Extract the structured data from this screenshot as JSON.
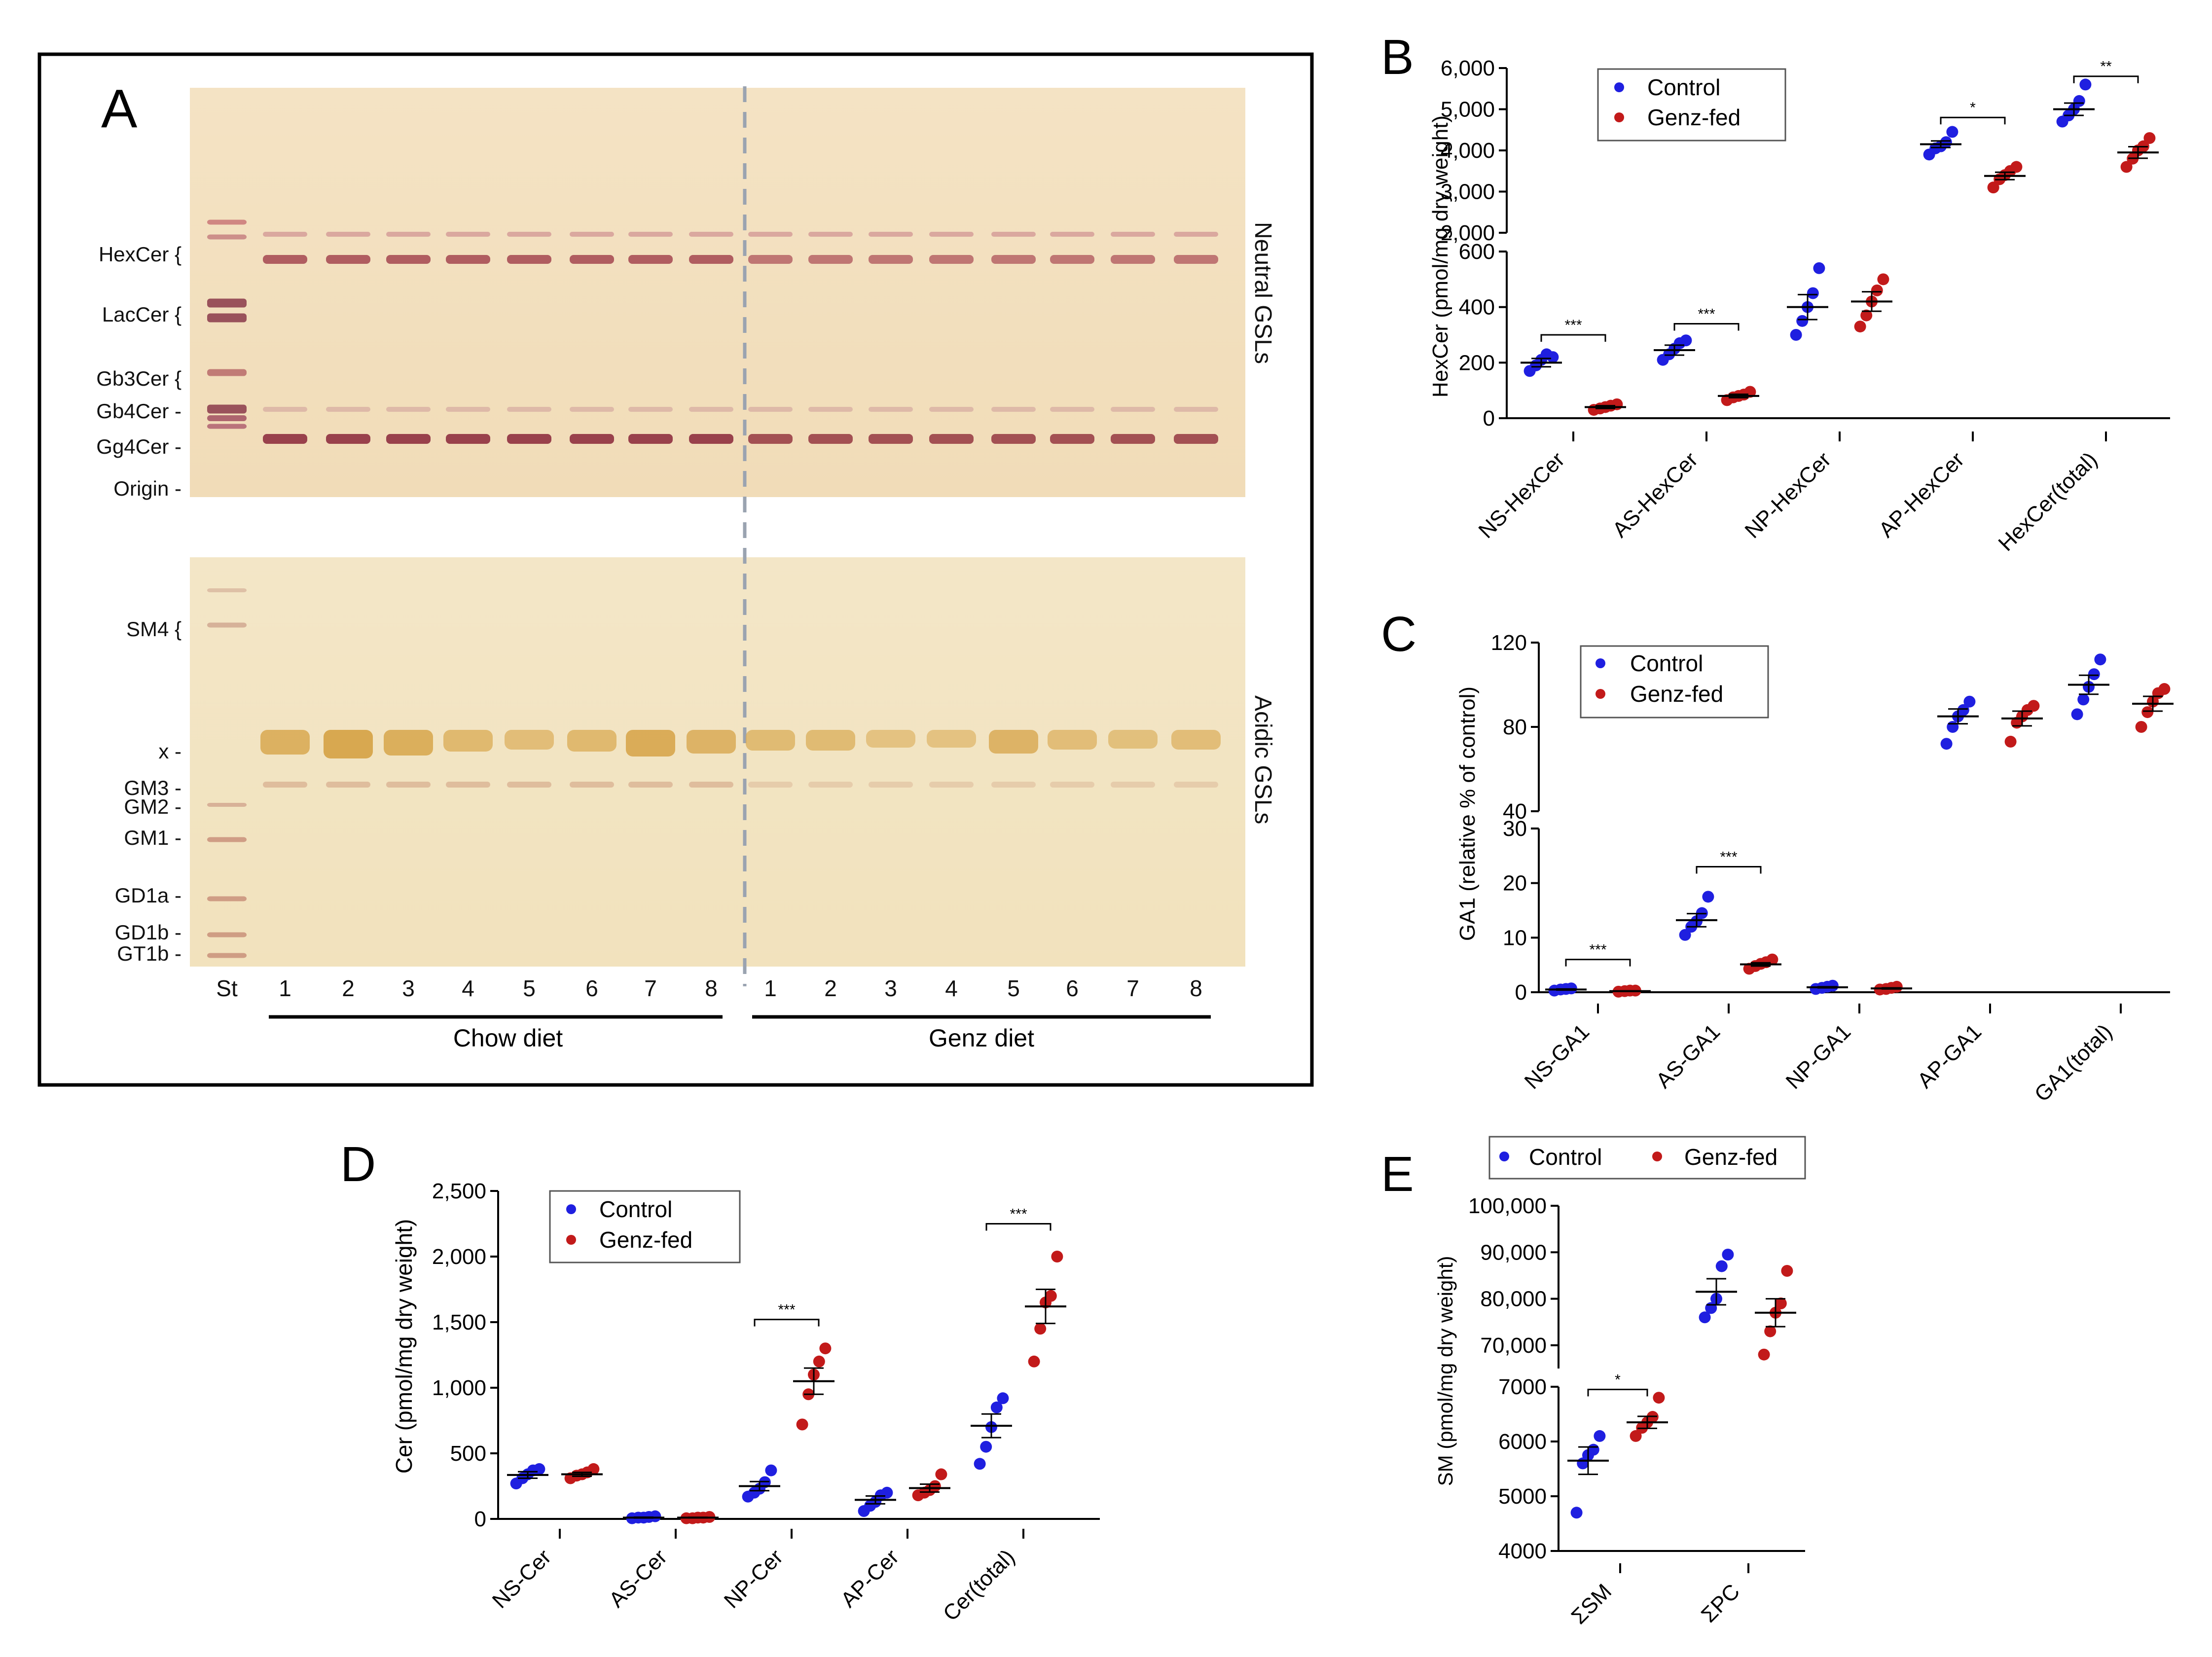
{
  "panelA": {
    "letter": "A",
    "neutral_labels": [
      "HexCer {",
      "LacCer {",
      "Gb3Cer {",
      "Gb4Cer -",
      "Gg4Cer -",
      "Origin -"
    ],
    "acidic_labels": [
      "SM4 {",
      "x -",
      "GM3 -",
      "GM2 -",
      "GM1 -",
      "GD1a -",
      "GD1b -",
      "GT1b -"
    ],
    "side_neutral": "Neutral GSLs",
    "side_acidic": "Acidic GSLs",
    "lane_st": "St",
    "lanes": [
      "1",
      "2",
      "3",
      "4",
      "5",
      "6",
      "7",
      "8"
    ],
    "group_chow": "Chow diet",
    "group_genz": "Genz diet"
  },
  "colors": {
    "control": "#1f1fe0",
    "genz": "#c21a1a"
  },
  "chart_data": [
    {
      "panel": "B",
      "type": "scatter",
      "ylabel": "HexCer (pmol/mg dry weight)",
      "legend": [
        "Control",
        "Genz-fed"
      ],
      "categories": [
        "NS-HexCer",
        "AS-HexCer",
        "NP-HexCer",
        "AP-HexCer",
        "HexCer(total)"
      ],
      "upper_yticks": [
        "6,000",
        "5,000",
        "4,000",
        "3,000",
        "2,000"
      ],
      "upper_ylim": [
        2000,
        6000
      ],
      "lower_yticks": [
        "600",
        "400",
        "200",
        "0"
      ],
      "lower_ylim": [
        0,
        600
      ],
      "series": [
        {
          "name": "Control",
          "points": [
            [
              170,
              190,
              210,
              230,
              220
            ],
            [
              210,
              230,
              250,
              270,
              280
            ],
            [
              300,
              350,
              400,
              450,
              540
            ],
            [
              3900,
              4050,
              4100,
              4200,
              4450
            ],
            [
              4700,
              4850,
              5000,
              5200,
              5600
            ]
          ],
          "mean": [
            200,
            245,
            400,
            4150,
            5000
          ],
          "sem": [
            15,
            18,
            45,
            80,
            150
          ]
        },
        {
          "name": "Genz-fed",
          "points": [
            [
              30,
              35,
              40,
              45,
              50
            ],
            [
              65,
              75,
              80,
              85,
              95
            ],
            [
              330,
              370,
              420,
              460,
              500
            ],
            [
              3100,
              3300,
              3400,
              3500,
              3600
            ],
            [
              3600,
              3800,
              4000,
              4100,
              4300
            ]
          ],
          "mean": [
            40,
            80,
            420,
            3380,
            3950
          ],
          "sem": [
            5,
            6,
            35,
            90,
            140
          ]
        }
      ],
      "significance": [
        [
          "NS-HexCer",
          "***"
        ],
        [
          "AS-HexCer",
          "***"
        ],
        [
          "AP-HexCer",
          "*"
        ],
        [
          "HexCer(total)",
          "**"
        ]
      ]
    },
    {
      "panel": "C",
      "type": "scatter",
      "ylabel": "GA1 (relative % of control)",
      "legend": [
        "Control",
        "Genz-fed"
      ],
      "categories": [
        "NS-GA1",
        "AS-GA1",
        "NP-GA1",
        "AP-GA1",
        "GA1(total)"
      ],
      "upper_yticks": [
        "120",
        "80",
        "40"
      ],
      "upper_ylim": [
        40,
        120
      ],
      "lower_yticks": [
        "30",
        "20",
        "10",
        "0"
      ],
      "lower_ylim": [
        0,
        30
      ],
      "series": [
        {
          "name": "Control",
          "points": [
            [
              0.3,
              0.5,
              0.6,
              0.7
            ],
            [
              10.5,
              12,
              13,
              14.5,
              17.5
            ],
            [
              0.6,
              0.8,
              1.0,
              1.2
            ],
            [
              72,
              80,
              85,
              88,
              92
            ],
            [
              86,
              93,
              99,
              105,
              112
            ]
          ],
          "mean": [
            0.5,
            13.2,
            0.9,
            85,
            100
          ],
          "sem": [
            0.1,
            1.2,
            0.1,
            3.5,
            4.5
          ]
        },
        {
          "name": "Genz-fed",
          "points": [
            [
              0.1,
              0.2,
              0.3,
              0.3
            ],
            [
              4.3,
              4.8,
              5.2,
              5.5,
              6
            ],
            [
              0.5,
              0.6,
              0.8,
              1.0
            ],
            [
              73,
              82,
              85,
              88,
              90
            ],
            [
              80,
              87,
              92,
              96,
              98
            ]
          ],
          "mean": [
            0.2,
            5.1,
            0.7,
            84,
            91
          ],
          "sem": [
            0.05,
            0.3,
            0.1,
            3.5,
            3.5
          ]
        }
      ],
      "significance": [
        [
          "NS-GA1",
          "***"
        ],
        [
          "AS-GA1",
          "***"
        ]
      ]
    },
    {
      "panel": "D",
      "type": "scatter",
      "ylabel": "Cer (pmol/mg dry weight)",
      "legend": [
        "Control",
        "Genz-fed"
      ],
      "categories": [
        "NS-Cer",
        "AS-Cer",
        "NP-Cer",
        "AP-Cer",
        "Cer(total)"
      ],
      "yticks": [
        "2,500",
        "2,000",
        "1,500",
        "1,000",
        "500",
        "0"
      ],
      "ylim": [
        0,
        2500
      ],
      "series": [
        {
          "name": "Control",
          "points": [
            [
              270,
              310,
              340,
              370,
              380
            ],
            [
              5,
              10,
              10,
              15,
              20
            ],
            [
              170,
              200,
              230,
              280,
              370
            ],
            [
              60,
              100,
              130,
              180,
              200
            ],
            [
              420,
              550,
              700,
              850,
              920
            ]
          ],
          "mean": [
            335,
            10,
            250,
            145,
            710
          ],
          "sem": [
            25,
            3,
            35,
            30,
            90
          ]
        },
        {
          "name": "Genz-fed",
          "points": [
            [
              310,
              330,
              340,
              355,
              380
            ],
            [
              5,
              5,
              10,
              10,
              15
            ],
            [
              720,
              950,
              1100,
              1200,
              1300
            ],
            [
              180,
              200,
              220,
              250,
              340
            ],
            [
              1200,
              1450,
              1650,
              1700,
              2000
            ]
          ],
          "mean": [
            340,
            10,
            1050,
            235,
            1620
          ],
          "sem": [
            15,
            2,
            100,
            30,
            130
          ]
        }
      ],
      "significance": [
        [
          "NP-Cer",
          "***"
        ],
        [
          "Cer(total)",
          "***"
        ]
      ]
    },
    {
      "panel": "E",
      "type": "scatter",
      "ylabel": "SM (pmol/mg dry weight)",
      "legend": [
        "Control",
        "Genz-fed"
      ],
      "categories": [
        "ΣSM",
        "ΣPC"
      ],
      "upper_yticks": [
        "100,000",
        "90,000",
        "80,000",
        "70,000"
      ],
      "upper_ylim": [
        65000,
        100000
      ],
      "lower_yticks": [
        "7000",
        "6000",
        "5000",
        "4000"
      ],
      "lower_ylim": [
        4000,
        7000
      ],
      "series": [
        {
          "name": "Control",
          "points": [
            [
              4700,
              5600,
              5750,
              5850,
              6100
            ],
            [
              76000,
              78000,
              80000,
              87000,
              89500
            ]
          ],
          "mean": [
            5650,
            81500
          ],
          "sem": [
            250,
            2800
          ]
        },
        {
          "name": "Genz-fed",
          "points": [
            [
              6100,
              6250,
              6350,
              6450,
              6800
            ],
            [
              68000,
              73000,
              77000,
              79000,
              86000
            ]
          ],
          "mean": [
            6350,
            77000
          ],
          "sem": [
            110,
            3000
          ]
        }
      ],
      "significance": [
        [
          "ΣSM",
          "*"
        ]
      ]
    }
  ]
}
